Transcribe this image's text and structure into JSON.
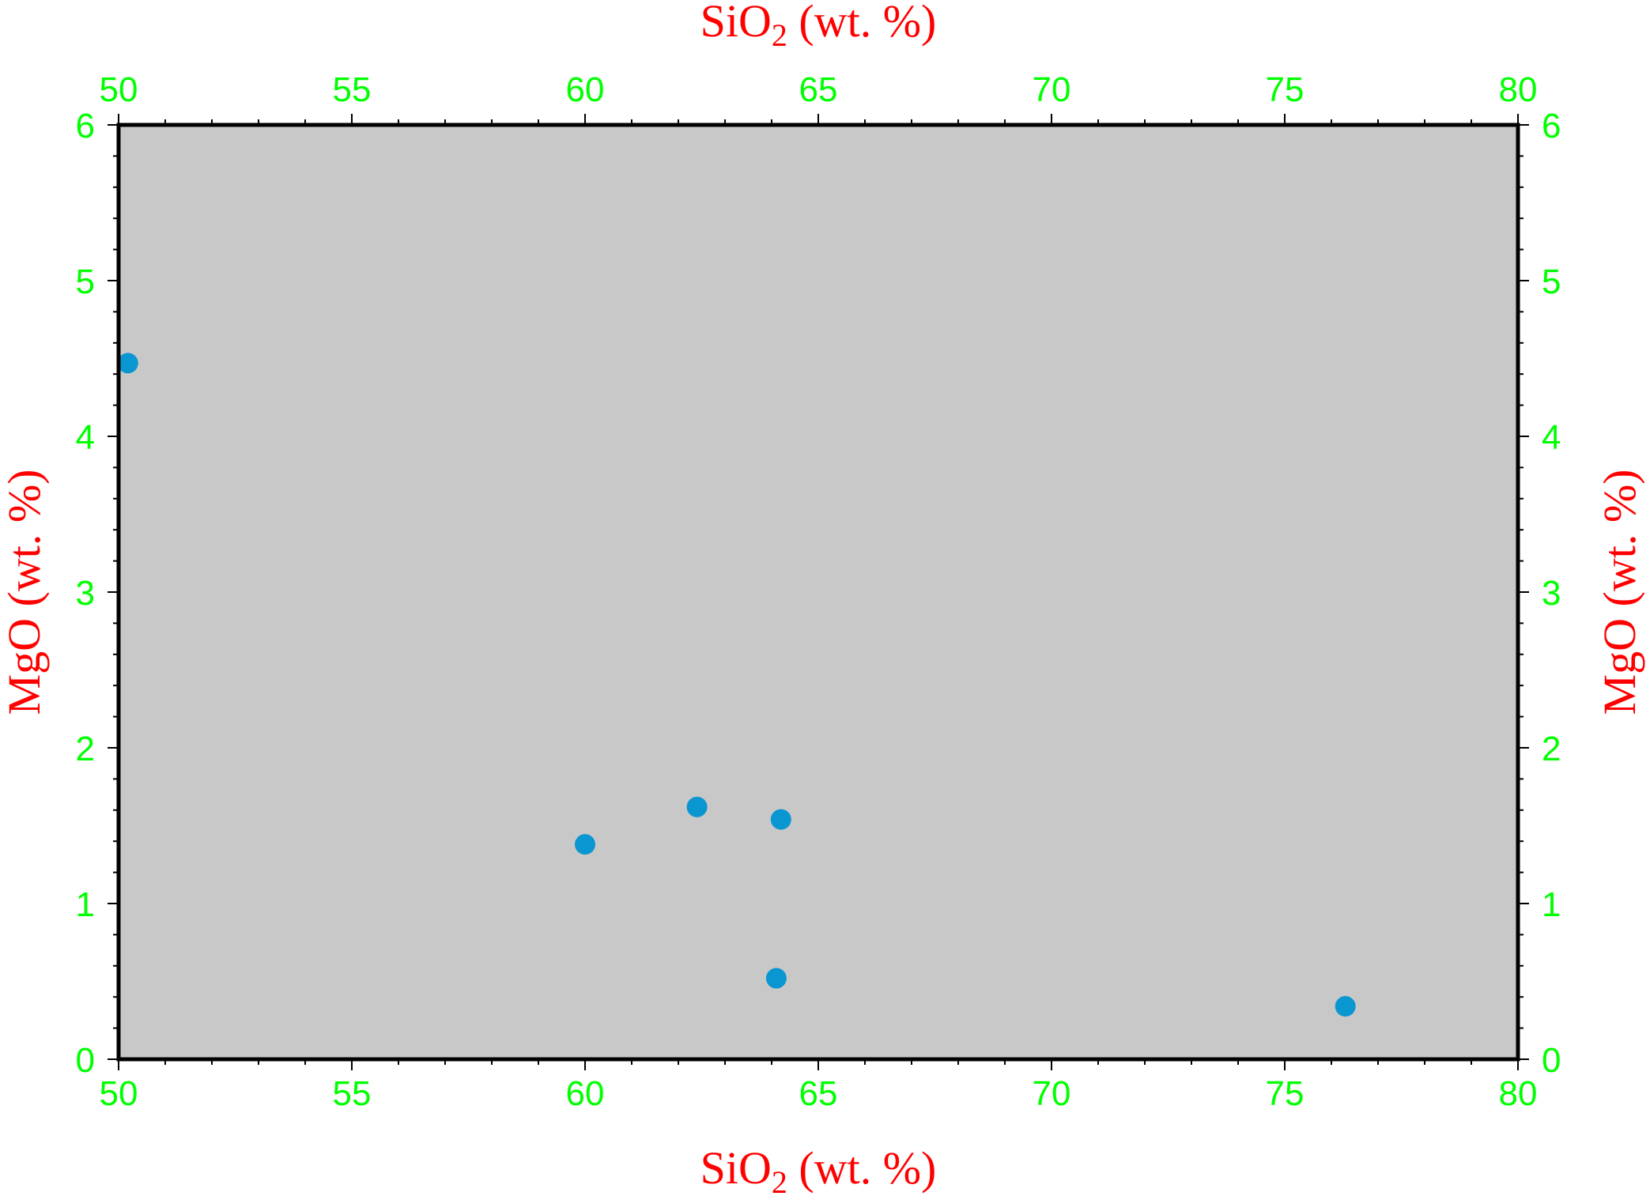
{
  "chart_data": {
    "type": "scatter",
    "title": "",
    "xlabel": {
      "base": "SiO",
      "sub": "2",
      "rest": " (wt. %)"
    },
    "ylabel": "MgO (wt. %)",
    "xlim": [
      50,
      80
    ],
    "ylim": [
      0,
      6
    ],
    "x_ticks": [
      50,
      55,
      60,
      65,
      70,
      75,
      80
    ],
    "x_minor_step": 1,
    "y_ticks": [
      0,
      1,
      2,
      3,
      4,
      5,
      6
    ],
    "y_minor_step": 0.2,
    "grid": false,
    "axes_on": [
      "bottom",
      "top",
      "left",
      "right"
    ],
    "points": [
      {
        "x": 50.2,
        "y": 4.47
      },
      {
        "x": 60.0,
        "y": 1.38
      },
      {
        "x": 62.4,
        "y": 1.62
      },
      {
        "x": 64.2,
        "y": 1.54
      },
      {
        "x": 64.1,
        "y": 0.52
      },
      {
        "x": 76.3,
        "y": 0.34
      }
    ]
  },
  "colors": {
    "plot_background": "#c8c8c8",
    "frame": "#000000",
    "tick_labels": "#00ff00",
    "axis_titles": "#ff0000",
    "markers": "#0a96d0"
  }
}
